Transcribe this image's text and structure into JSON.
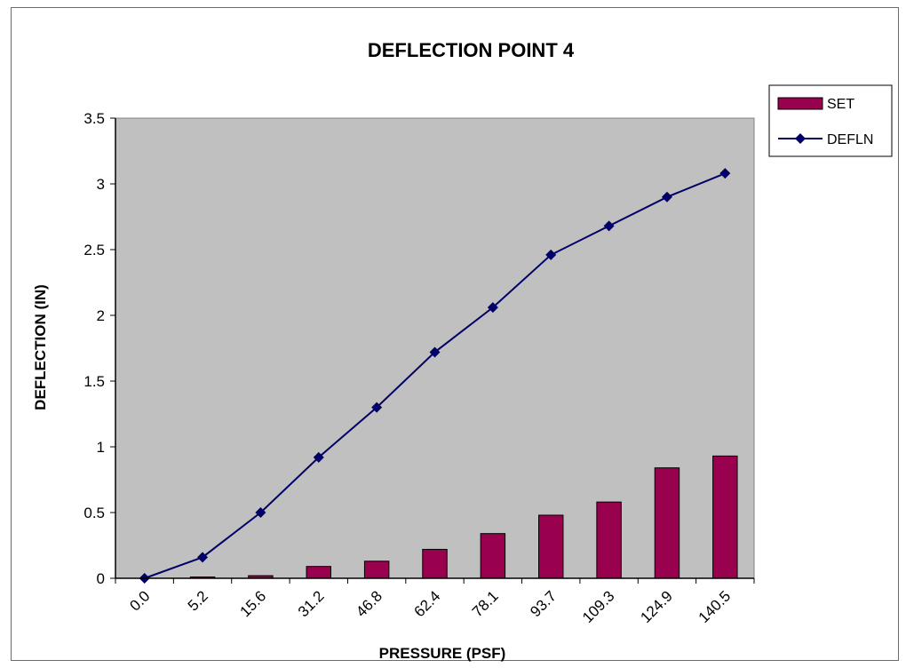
{
  "chart_data": {
    "type": "bar",
    "title": "DEFLECTION POINT 4",
    "xlabel": "PRESSURE (PSF)",
    "ylabel": "DEFLECTION (IN)",
    "categories": [
      "0.0",
      "5.2",
      "15.6",
      "31.2",
      "46.8",
      "62.4",
      "78.1",
      "93.7",
      "109.3",
      "124.9",
      "140.5"
    ],
    "ylim": [
      0,
      3.5
    ],
    "yticks": [
      "0",
      "0.5",
      "1",
      "1.5",
      "2",
      "2.5",
      "3",
      "3.5"
    ],
    "grid": false,
    "legend_position": "right",
    "plot_background": "#c0c0c0",
    "series": [
      {
        "name": "SET",
        "type": "bar",
        "color": "#99004d",
        "values": [
          0,
          0.01,
          0.02,
          0.09,
          0.13,
          0.22,
          0.34,
          0.48,
          0.58,
          0.84,
          0.93
        ]
      },
      {
        "name": "DEFLN",
        "type": "line",
        "marker": "diamond",
        "color": "#000066",
        "values": [
          0,
          0.16,
          0.5,
          0.92,
          1.3,
          1.72,
          2.06,
          2.46,
          2.68,
          2.9,
          3.08
        ]
      }
    ]
  }
}
